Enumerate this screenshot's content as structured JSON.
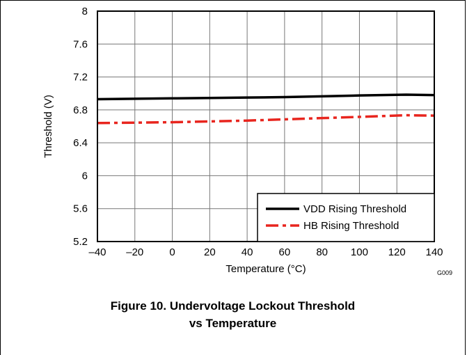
{
  "figure": {
    "code": "G009",
    "caption_line1": "Figure 10. Undervoltage Lockout Threshold",
    "caption_line2": "vs Temperature"
  },
  "chart_data": {
    "type": "line",
    "title": "",
    "xlabel": "Temperature (°C)",
    "ylabel": "Threshold (V)",
    "xlim": [
      -40,
      140
    ],
    "ylim": [
      5.2,
      8
    ],
    "xticks": [
      -40,
      -20,
      0,
      20,
      40,
      60,
      80,
      100,
      120,
      140
    ],
    "yticks": [
      5.2,
      5.6,
      6,
      6.4,
      6.8,
      7.2,
      7.6,
      8
    ],
    "xtick_labels": [
      "–40",
      "–20",
      "0",
      "20",
      "40",
      "60",
      "80",
      "100",
      "120",
      "140"
    ],
    "ytick_labels": [
      "5.2",
      "5.6",
      "6",
      "6.4",
      "6.8",
      "7.2",
      "7.6",
      "8"
    ],
    "grid": true,
    "legend_position": "bottom-right",
    "series": [
      {
        "name": "VDD Rising Threshold",
        "color": "#000000",
        "style": "solid",
        "x": [
          -40,
          -20,
          0,
          20,
          40,
          60,
          80,
          100,
          125,
          140
        ],
        "y": [
          6.93,
          6.935,
          6.94,
          6.945,
          6.95,
          6.955,
          6.965,
          6.975,
          6.985,
          6.98
        ]
      },
      {
        "name": "HB Rising Threshold",
        "color": "#e8251e",
        "style": "dashed",
        "x": [
          -40,
          -20,
          0,
          20,
          40,
          60,
          80,
          100,
          125,
          140
        ],
        "y": [
          6.64,
          6.645,
          6.65,
          6.66,
          6.67,
          6.685,
          6.7,
          6.715,
          6.735,
          6.73
        ]
      }
    ]
  }
}
